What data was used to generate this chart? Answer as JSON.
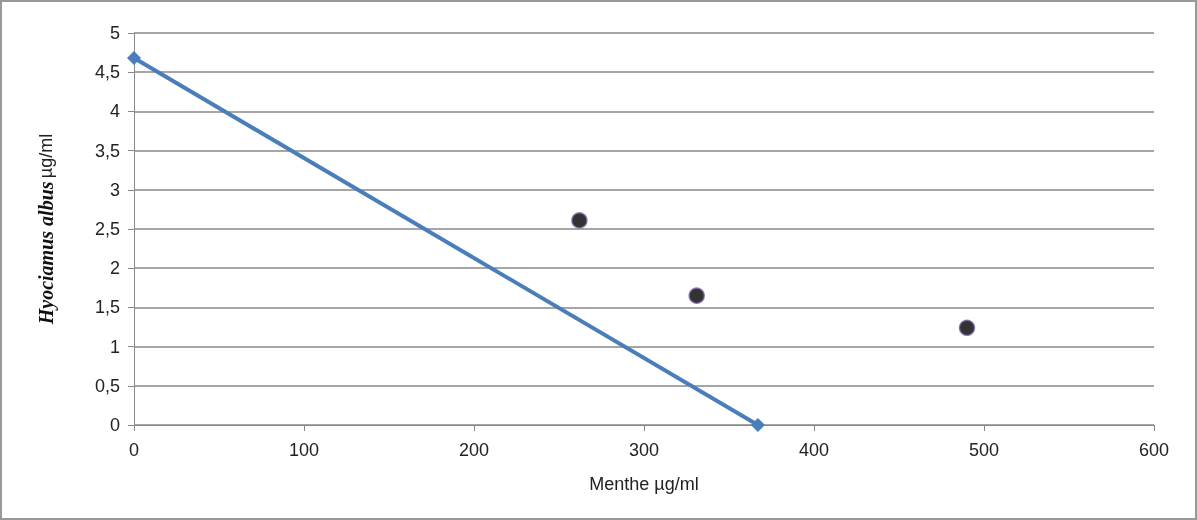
{
  "chart_data": {
    "type": "line",
    "xlabel": "Menthe µg/ml",
    "ylabel": "Hyociamus albus µg/ml",
    "xlim": [
      0,
      600
    ],
    "xticks": [
      0,
      100,
      200,
      300,
      400,
      500,
      600
    ],
    "ylim": [
      0,
      5
    ],
    "yticks": [
      0,
      {
        "value": 0.5,
        "label": "0,5"
      },
      1,
      {
        "value": 1.5,
        "label": "1,5"
      },
      2,
      {
        "value": 2.5,
        "label": "2,5"
      },
      3,
      {
        "value": 3.5,
        "label": "3,5"
      },
      4,
      {
        "value": 4.5,
        "label": "4,5"
      },
      5
    ],
    "grid": "y",
    "series": [
      {
        "color": "#4a7ebb",
        "x": [
          0,
          367
        ],
        "values": [
          4.68,
          0
        ],
        "marker": "diamond",
        "line_style": "solid"
      },
      {
        "type": "scatter",
        "color": "#000000",
        "x": [
          262,
          331,
          490
        ],
        "values": [
          2.61,
          1.65,
          1.24
        ],
        "marker": "circle"
      }
    ]
  }
}
